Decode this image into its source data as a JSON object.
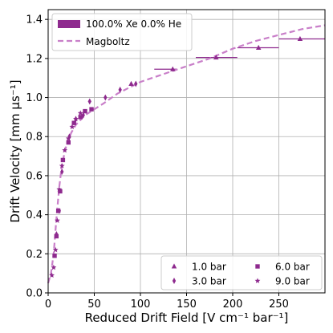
{
  "chart_data": {
    "type": "scatter",
    "xlabel": "Reduced Drift Field [V cm⁻¹ bar⁻¹]",
    "ylabel": "Drift Velocity [mm μs⁻¹]",
    "xlim": [
      0,
      300
    ],
    "ylim": [
      0,
      1.45
    ],
    "xticks": [
      0,
      50,
      100,
      150,
      200,
      250
    ],
    "yticks": [
      0.0,
      0.2,
      0.4,
      0.6,
      0.8,
      1.0,
      1.2,
      1.4
    ],
    "xtick_labels": [
      "0",
      "50",
      "100",
      "150",
      "200",
      "250"
    ],
    "ytick_labels": [
      "0.0",
      "0.2",
      "0.4",
      "0.6",
      "0.8",
      "1.0",
      "1.2",
      "1.4"
    ],
    "grid": true,
    "colors": {
      "marker": "#8e2a8e",
      "band": "#8e2a8e",
      "line": "#c97fc9",
      "grid": "#b0b0b0"
    },
    "band_legend": "100.0% Xe 0.0% He",
    "magboltz": {
      "name": "Magboltz",
      "x": [
        0,
        3,
        6,
        9,
        12,
        15,
        20,
        25,
        30,
        40,
        50,
        60,
        75,
        100,
        125,
        150,
        175,
        200,
        225,
        250,
        275,
        300
      ],
      "y": [
        0.05,
        0.1,
        0.2,
        0.38,
        0.54,
        0.66,
        0.76,
        0.82,
        0.86,
        0.91,
        0.94,
        0.97,
        1.02,
        1.08,
        1.12,
        1.16,
        1.2,
        1.25,
        1.29,
        1.32,
        1.35,
        1.37
      ]
    },
    "binned_band": [
      {
        "x0": 115,
        "x1": 140,
        "y": 1.145
      },
      {
        "x0": 160,
        "x1": 205,
        "y": 1.205
      },
      {
        "x0": 205,
        "x1": 250,
        "y": 1.255
      },
      {
        "x0": 250,
        "x1": 300,
        "y": 1.3
      }
    ],
    "series": [
      {
        "name": "1.0 bar",
        "marker": "triangle",
        "x": [
          90,
          135,
          182,
          228,
          273
        ],
        "y": [
          1.07,
          1.145,
          1.205,
          1.255,
          1.3
        ]
      },
      {
        "name": "3.0 bar",
        "marker": "diamond",
        "x": [
          9,
          12,
          15,
          23,
          30,
          38,
          45,
          62,
          78,
          95
        ],
        "y": [
          0.3,
          0.42,
          0.62,
          0.8,
          0.89,
          0.91,
          0.98,
          1.0,
          1.04,
          1.07
        ]
      },
      {
        "name": "6.0 bar",
        "marker": "square",
        "x": [
          7,
          9,
          11,
          13,
          16,
          22,
          28,
          35,
          40,
          47
        ],
        "y": [
          0.19,
          0.29,
          0.42,
          0.52,
          0.68,
          0.77,
          0.87,
          0.9,
          0.93,
          0.94
        ]
      },
      {
        "name": "9.0 bar",
        "marker": "star",
        "x": [
          4,
          6,
          8,
          10,
          12,
          15,
          18,
          22,
          26,
          30,
          35
        ],
        "y": [
          0.09,
          0.13,
          0.22,
          0.37,
          0.53,
          0.65,
          0.73,
          0.79,
          0.85,
          0.89,
          0.92
        ]
      }
    ],
    "top_legend_placement": "upper-left",
    "marker_legend_placement": "lower-right"
  }
}
